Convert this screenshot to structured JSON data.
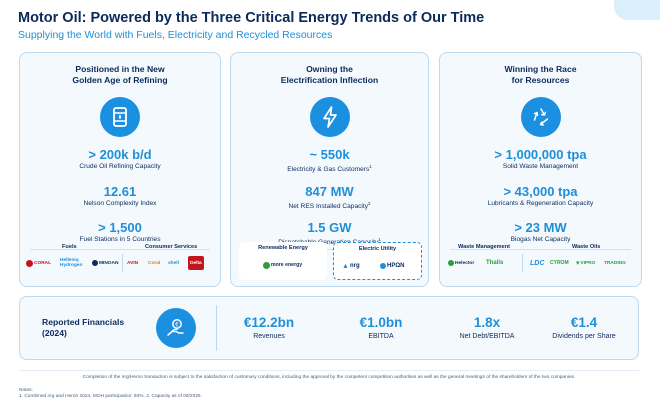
{
  "header": {
    "title": "Motor Oil: Powered by the Three Critical Energy Trends of Our Time",
    "subtitle": "Supplying the World with Fuels, Electricity and Recycled Resources"
  },
  "panels": [
    {
      "heading_line1": "Positioned in the New",
      "heading_line2": "Golden Age of Refining",
      "icon": "oil-barrel-icon",
      "metrics": [
        {
          "value": "> 200k b/d",
          "label": "Crude Oil Refining Capacity"
        },
        {
          "value": "12.61",
          "label": "Nelson Complexity Index"
        },
        {
          "value": "> 1,500",
          "label": "Fuel Stations in 5 Countries"
        }
      ],
      "logo_groups": [
        {
          "label": "Fuels",
          "logos": [
            "CORAL",
            "Helleniq Hydrogen",
            "MINOAN"
          ]
        },
        {
          "label": "Consumer Services",
          "logos": [
            "AVIN",
            "Coral",
            "shell",
            "Delta"
          ]
        }
      ]
    },
    {
      "heading_line1": "Owning the",
      "heading_line2": "Electrification Inflection",
      "icon": "lightning-icon",
      "metrics": [
        {
          "value": "~ 550k",
          "label": "Electricity & Gas Customers",
          "sup": "1"
        },
        {
          "value": "847 MW",
          "label": "Net RES Installed Capacity",
          "sup": "2"
        },
        {
          "value": "1.5 GW",
          "label": "Dispatchable Generation Capacity",
          "sup": "1"
        }
      ],
      "logo_groups": [
        {
          "label": "Renewable Energy",
          "logos": [
            "more energy"
          ]
        },
        {
          "label": "Electric Utility",
          "logos": [
            "nrg",
            "HPΩN"
          ]
        }
      ]
    },
    {
      "heading_line1": "Winning the Race",
      "heading_line2": "for Resources",
      "icon": "recycle-icon",
      "metrics": [
        {
          "value": "> 1,000,000 tpa",
          "label": "Solid Waste Management"
        },
        {
          "value": "> 43,000 tpa",
          "label": "Lubricants & Regeneration Capacity"
        },
        {
          "value": "> 23 MW",
          "label": "Biogas Net Capacity"
        }
      ],
      "logo_groups": [
        {
          "label": "Waste Management",
          "logos": [
            "Helector",
            "Thalis"
          ]
        },
        {
          "label": "Waste Oils",
          "logos": [
            "LDC",
            "CYROM",
            "VIPRO",
            "TRADING"
          ]
        }
      ]
    }
  ],
  "financials": {
    "title_line1": "Reported Financials",
    "title_line2": "(2024)",
    "icon": "money-hand-icon",
    "metrics": [
      {
        "value": "€12.2bn",
        "label": "Revenues"
      },
      {
        "value": "€1.0bn",
        "label": "EBITDA"
      },
      {
        "value": "1.8x",
        "label": "Net Debt/EBITDA"
      },
      {
        "value": "€1.4",
        "label": "Dividends per Share"
      }
    ]
  },
  "footer": {
    "disclaimer": "Completion of the nrg/Heron transaction is subject to the satisfaction of customary conditions, including the approval by the competent competition authorities as well as the general meetings of the shareholders of the two companies.",
    "notes_label": "Notes:",
    "note_1": "1. Combined nrg and Heron 2024, MOH participation: 50%.   2. Capacity as of 09/2025."
  },
  "colors": {
    "navy": "#0b2a5b",
    "accent_blue": "#1f8fd8",
    "icon_blue": "#1b8fe0",
    "panel_bg": "#f4f9fe",
    "border": "#bcd9ef"
  }
}
